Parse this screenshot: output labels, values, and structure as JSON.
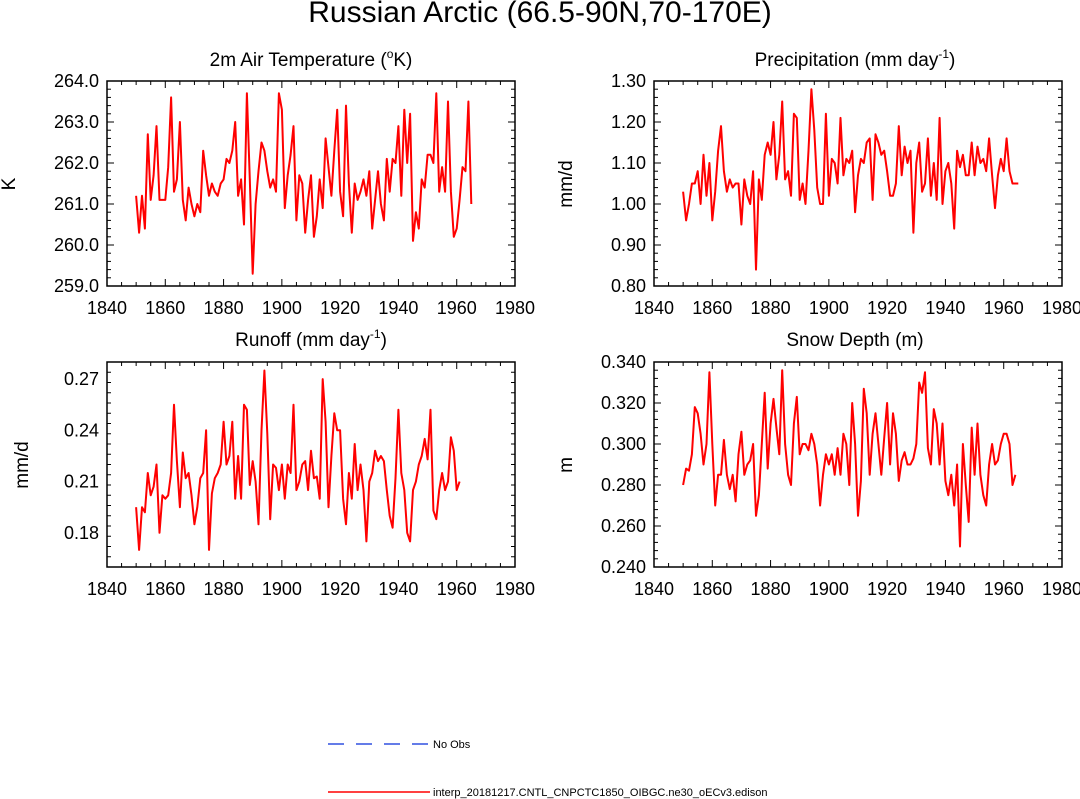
{
  "figure": {
    "title": "Russian Arctic (66.5-90N,70-170E)",
    "series_color": "#ff0000",
    "obs_color": "#3050e0"
  },
  "legend": {
    "obs_label": "No Obs",
    "model_label": "interp_20181217.CNTL_CNPCTC1850_OIBGC.ne30_oECv3.edison"
  },
  "chart_data": [
    {
      "type": "line",
      "title_main": "2m Air Temperature (",
      "title_sup": "o",
      "title_after": "K)",
      "xlabel": "",
      "ylabel": "K",
      "xlim": [
        1840,
        1980
      ],
      "ylim": [
        259.0,
        264.0
      ],
      "xticks": [
        1840,
        1860,
        1880,
        1900,
        1920,
        1940,
        1960,
        1980
      ],
      "yticks": [
        "259.0",
        "260.0",
        "261.0",
        "262.0",
        "263.0",
        "264.0"
      ],
      "x_start": 1850,
      "series": [
        {
          "name": "interp_20181217.CNTL_CNPCTC1850_OIBGC.ne30_oECv3.edison",
          "values": [
            261.2,
            260.3,
            261.2,
            260.4,
            262.7,
            261.1,
            261.7,
            262.9,
            261.1,
            261.1,
            261.1,
            261.9,
            263.6,
            261.3,
            261.6,
            263.0,
            261.1,
            260.6,
            261.4,
            261.0,
            260.7,
            261.0,
            260.8,
            262.3,
            261.7,
            261.2,
            261.5,
            261.3,
            261.2,
            261.5,
            261.6,
            262.1,
            262.0,
            262.3,
            263.0,
            261.2,
            261.6,
            260.5,
            263.7,
            261.6,
            259.3,
            261.0,
            261.8,
            262.5,
            262.3,
            261.8,
            261.4,
            261.6,
            261.3,
            263.7,
            263.3,
            260.9,
            261.7,
            262.2,
            262.9,
            260.6,
            261.7,
            261.5,
            260.3,
            261.1,
            261.7,
            260.2,
            260.7,
            261.6,
            260.9,
            262.6,
            261.9,
            261.2,
            262.3,
            263.3,
            261.3,
            260.7,
            263.4,
            261.5,
            260.3,
            261.5,
            261.1,
            261.3,
            261.6,
            261.2,
            261.8,
            260.4,
            261.1,
            261.8,
            261.0,
            260.6,
            262.1,
            261.3,
            262.1,
            262.0,
            262.9,
            261.2,
            263.3,
            262.0,
            263.2,
            260.1,
            260.8,
            260.4,
            261.6,
            261.4,
            262.2,
            262.2,
            262.0,
            263.7,
            261.3,
            261.9,
            261.3,
            263.5,
            261.3,
            260.2,
            260.4,
            261.1,
            261.9,
            261.8,
            263.5,
            261.0
          ]
        }
      ]
    },
    {
      "type": "line",
      "title_main": "Precipitation (mm day",
      "title_sup": "-1",
      "title_after": ")",
      "xlabel": "",
      "ylabel": "mm/d",
      "xlim": [
        1840,
        1980
      ],
      "ylim": [
        0.8,
        1.3
      ],
      "xticks": [
        1840,
        1860,
        1880,
        1900,
        1920,
        1940,
        1960,
        1980
      ],
      "yticks": [
        "0.80",
        "0.90",
        "1.00",
        "1.10",
        "1.20",
        "1.30"
      ],
      "x_start": 1850,
      "series": [
        {
          "name": "interp_20181217.CNTL_CNPCTC1850_OIBGC.ne30_oECv3.edison",
          "values": [
            1.03,
            0.96,
            1.0,
            1.05,
            1.05,
            1.08,
            1.0,
            1.12,
            1.02,
            1.1,
            0.96,
            1.03,
            1.13,
            1.19,
            1.08,
            1.03,
            1.06,
            1.04,
            1.05,
            1.05,
            0.95,
            1.06,
            1.02,
            1.0,
            1.08,
            0.84,
            1.06,
            1.01,
            1.12,
            1.15,
            1.12,
            1.2,
            1.06,
            1.12,
            1.25,
            1.06,
            1.08,
            1.02,
            1.22,
            1.21,
            1.01,
            1.05,
            1.0,
            1.13,
            1.28,
            1.18,
            1.04,
            1.0,
            1.0,
            1.22,
            1.02,
            1.11,
            1.1,
            1.05,
            1.21,
            1.07,
            1.11,
            1.1,
            1.13,
            0.98,
            1.07,
            1.11,
            1.1,
            1.15,
            1.16,
            1.01,
            1.17,
            1.15,
            1.12,
            1.13,
            1.08,
            1.02,
            1.02,
            1.05,
            1.19,
            1.07,
            1.14,
            1.1,
            1.13,
            0.93,
            1.1,
            1.15,
            1.03,
            1.05,
            1.16,
            1.02,
            1.1,
            1.01,
            1.21,
            1.0,
            1.08,
            1.1,
            1.05,
            0.94,
            1.13,
            1.09,
            1.12,
            1.07,
            1.07,
            1.15,
            1.07,
            1.14,
            1.1,
            1.11,
            1.08,
            1.16,
            1.07,
            0.99,
            1.07,
            1.11,
            1.08,
            1.16,
            1.08,
            1.05,
            1.05,
            1.05
          ]
        }
      ]
    },
    {
      "type": "line",
      "title_main": "Runoff (mm day",
      "title_sup": "-1",
      "title_after": ")",
      "xlabel": "",
      "ylabel": "mm/d",
      "xlim": [
        1840,
        1980
      ],
      "ylim": [
        0.16,
        0.28
      ],
      "xticks": [
        1840,
        1860,
        1880,
        1900,
        1920,
        1940,
        1960,
        1980
      ],
      "yticks": [
        "0.18",
        "0.21",
        "0.24",
        "0.27"
      ],
      "ytick_values": [
        0.18,
        0.21,
        0.24,
        0.27
      ],
      "x_start": 1850,
      "series": [
        {
          "name": "interp_20181217.CNTL_CNPCTC1850_OIBGC.ne30_oECv3.edison",
          "values": [
            0.195,
            0.17,
            0.195,
            0.192,
            0.215,
            0.202,
            0.207,
            0.22,
            0.18,
            0.202,
            0.2,
            0.202,
            0.215,
            0.255,
            0.222,
            0.195,
            0.227,
            0.212,
            0.215,
            0.202,
            0.185,
            0.195,
            0.212,
            0.215,
            0.24,
            0.17,
            0.203,
            0.212,
            0.215,
            0.22,
            0.245,
            0.22,
            0.225,
            0.245,
            0.2,
            0.225,
            0.2,
            0.255,
            0.252,
            0.208,
            0.222,
            0.21,
            0.185,
            0.24,
            0.275,
            0.238,
            0.188,
            0.22,
            0.218,
            0.205,
            0.22,
            0.2,
            0.22,
            0.215,
            0.255,
            0.205,
            0.21,
            0.22,
            0.222,
            0.205,
            0.228,
            0.212,
            0.213,
            0.2,
            0.27,
            0.245,
            0.195,
            0.225,
            0.25,
            0.24,
            0.24,
            0.2,
            0.185,
            0.215,
            0.2,
            0.232,
            0.205,
            0.22,
            0.205,
            0.175,
            0.21,
            0.215,
            0.228,
            0.222,
            0.225,
            0.222,
            0.205,
            0.19,
            0.183,
            0.212,
            0.252,
            0.215,
            0.205,
            0.18,
            0.175,
            0.205,
            0.21,
            0.22,
            0.225,
            0.235,
            0.223,
            0.252,
            0.193,
            0.188,
            0.205,
            0.215,
            0.205,
            0.21,
            0.236,
            0.228,
            0.205,
            0.21
          ]
        }
      ]
    },
    {
      "type": "line",
      "title_main": "Snow Depth (m)",
      "title_sup": "",
      "title_after": "",
      "xlabel": "",
      "ylabel": "m",
      "xlim": [
        1840,
        1980
      ],
      "ylim": [
        0.24,
        0.34
      ],
      "xticks": [
        1840,
        1860,
        1880,
        1900,
        1920,
        1940,
        1960,
        1980
      ],
      "yticks": [
        "0.240",
        "0.260",
        "0.280",
        "0.300",
        "0.320",
        "0.340"
      ],
      "x_start": 1850,
      "series": [
        {
          "name": "interp_20181217.CNTL_CNPCTC1850_OIBGC.ne30_oECv3.edison",
          "values": [
            0.28,
            0.288,
            0.287,
            0.295,
            0.318,
            0.315,
            0.305,
            0.29,
            0.3,
            0.335,
            0.3,
            0.27,
            0.285,
            0.285,
            0.302,
            0.285,
            0.278,
            0.285,
            0.272,
            0.295,
            0.306,
            0.285,
            0.29,
            0.292,
            0.3,
            0.265,
            0.275,
            0.3,
            0.325,
            0.288,
            0.31,
            0.322,
            0.308,
            0.295,
            0.336,
            0.3,
            0.285,
            0.28,
            0.31,
            0.323,
            0.295,
            0.3,
            0.3,
            0.297,
            0.305,
            0.3,
            0.29,
            0.27,
            0.285,
            0.295,
            0.29,
            0.295,
            0.285,
            0.298,
            0.285,
            0.305,
            0.3,
            0.28,
            0.32,
            0.3,
            0.265,
            0.282,
            0.327,
            0.315,
            0.285,
            0.305,
            0.315,
            0.3,
            0.285,
            0.303,
            0.32,
            0.29,
            0.315,
            0.305,
            0.282,
            0.292,
            0.296,
            0.29,
            0.29,
            0.293,
            0.3,
            0.33,
            0.325,
            0.335,
            0.298,
            0.29,
            0.317,
            0.31,
            0.29,
            0.31,
            0.282,
            0.275,
            0.285,
            0.27,
            0.29,
            0.25,
            0.3,
            0.28,
            0.262,
            0.308,
            0.285,
            0.31,
            0.285,
            0.275,
            0.27,
            0.29,
            0.3,
            0.29,
            0.292,
            0.3,
            0.305,
            0.305,
            0.3,
            0.28,
            0.285
          ]
        }
      ]
    }
  ]
}
